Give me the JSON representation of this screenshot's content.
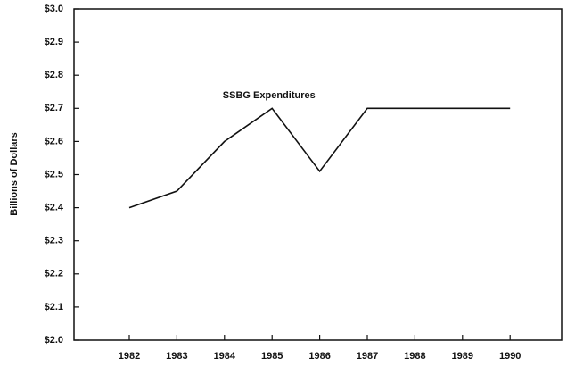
{
  "chart_data": {
    "type": "line",
    "y_label": "Billions of Dollars",
    "categories": [
      "1982",
      "1983",
      "1984",
      "1985",
      "1986",
      "1987",
      "1988",
      "1989",
      "1990"
    ],
    "series": [
      {
        "name": "SSBG Expenditures",
        "color": "#111111",
        "values": [
          2.4,
          2.45,
          2.6,
          2.7,
          2.51,
          2.7,
          2.7,
          2.7,
          2.7
        ]
      }
    ],
    "ylim": [
      2.0,
      3.0
    ],
    "yticks": [
      {
        "value": 2.0,
        "label": "$2.0"
      },
      {
        "value": 2.1,
        "label": "$2.1"
      },
      {
        "value": 2.2,
        "label": "$2.2"
      },
      {
        "value": 2.3,
        "label": "$2.3"
      },
      {
        "value": 2.4,
        "label": "$2.4"
      },
      {
        "value": 2.5,
        "label": "$2.5"
      },
      {
        "value": 2.6,
        "label": "$2.6"
      },
      {
        "value": 2.7,
        "label": "$2.7"
      },
      {
        "value": 2.8,
        "label": "$2.8"
      },
      {
        "value": 2.9,
        "label": "$2.9"
      },
      {
        "value": 3.0,
        "label": "$3.0"
      }
    ],
    "grid": false
  }
}
